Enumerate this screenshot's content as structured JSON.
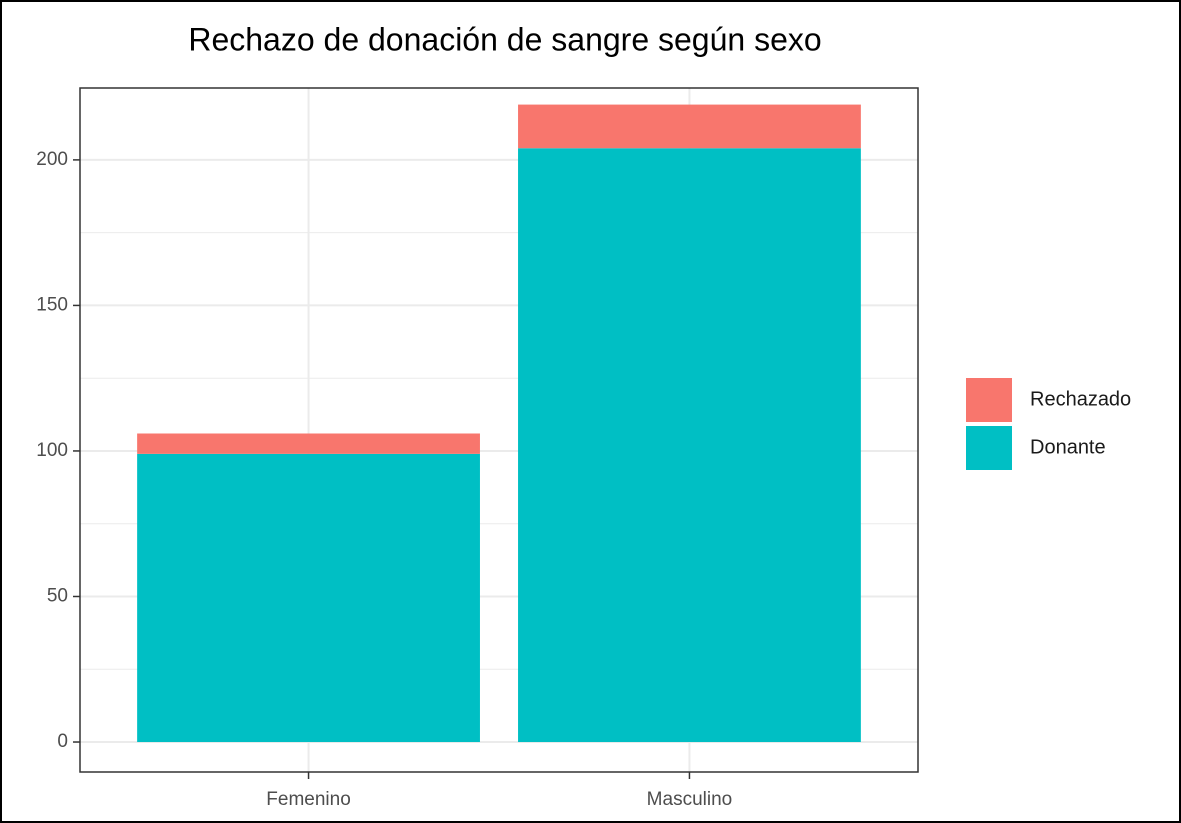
{
  "chart_data": {
    "type": "stacked_bar",
    "title": "Rechazo de donación de sangre según sexo",
    "categories": [
      "Femenino",
      "Masculino"
    ],
    "series": [
      {
        "name": "Donante",
        "color": "#00bfc4",
        "values": [
          99,
          204
        ]
      },
      {
        "name": "Rechazado",
        "color": "#f8766d",
        "values": [
          7,
          15
        ]
      }
    ],
    "ylim": [
      -10.3,
      224.7
    ],
    "yticks": [
      0,
      50,
      100,
      150,
      200
    ],
    "yminor": [
      25,
      75,
      125,
      175
    ],
    "grid": true,
    "legend": "right"
  }
}
